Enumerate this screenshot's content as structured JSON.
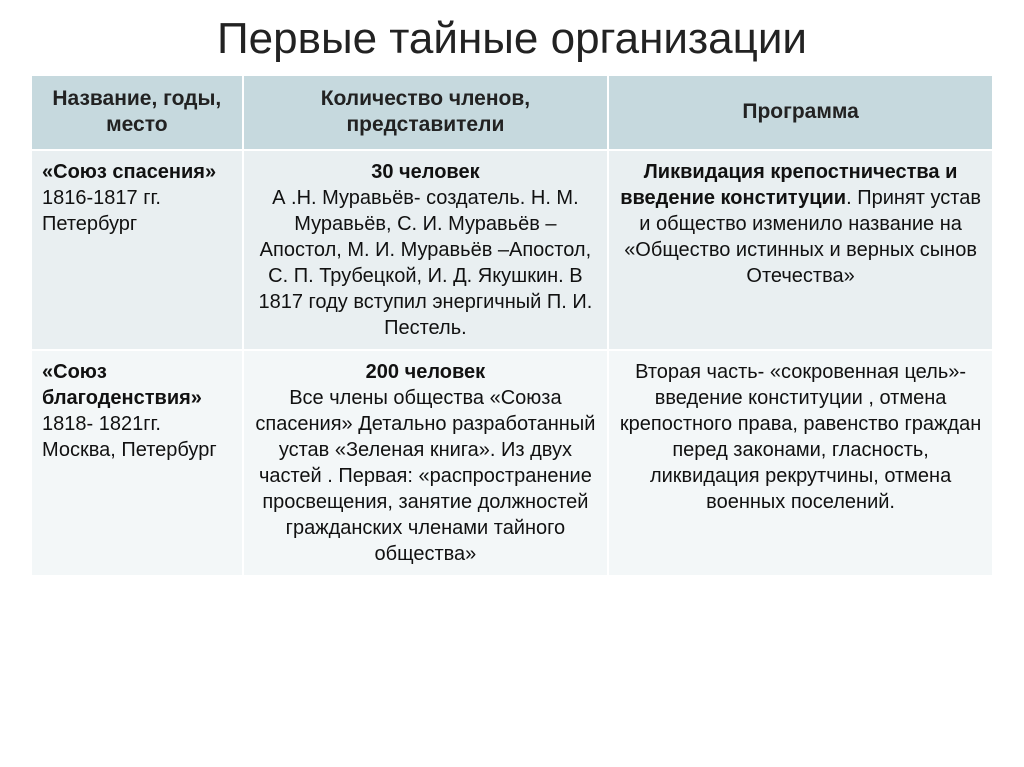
{
  "title": "Первые тайные организации",
  "headers": {
    "col1": "Название, годы, место",
    "col2": "Количество членов, представители",
    "col3": "Программа"
  },
  "rows": [
    {
      "name_bold": "«Союз спасения»",
      "name_rest": " 1816-1817 гг.  Петербург",
      "members_bold": "30 человек",
      "members_rest": "А .Н. Муравьёв- создатель. Н. М. Муравьёв, С. И. Муравьёв – Апостол, М. И. Муравьёв –Апостол, С. П. Трубецкой, И. Д. Якушкин. В 1817 году вступил энергичный П. И. Пестель.",
      "program_bold": "Ликвидация крепостничества и введение конституции",
      "program_rest": ". Принят устав и общество изменило название на «Общество истинных и верных сынов Отечества»"
    },
    {
      "name_bold": "«Союз благоденствия»",
      "name_rest": " 1818- 1821гг. Москва, Петербург",
      "members_bold": "200 человек",
      "members_rest": "Все члены общества «Союза спасения» Детально разработанный устав «Зеленая книга». Из двух частей . Первая: «распространение просвещения, занятие должностей гражданских членами тайного общества»",
      "program_bold": "",
      "program_rest": "Вторая часть- «сокровенная цель»-введение конституции , отмена крепостного права, равенство граждан перед законами,  гласность, ликвидация рекрутчины, отмена военных  поселений."
    }
  ]
}
